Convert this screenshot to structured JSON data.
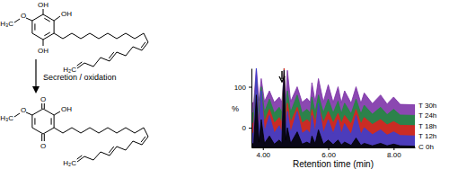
{
  "chart_data": {
    "type": "area",
    "x_label": "Retention time (min)",
    "y_label": "%",
    "xlim": [
      3.65,
      8.65
    ],
    "ylim": [
      -48,
      145
    ],
    "xticks": [
      {
        "value": 4,
        "label": "4.00"
      },
      {
        "value": 6,
        "label": "6.00"
      },
      {
        "value": 8,
        "label": "8.00"
      }
    ],
    "yticks": [
      0,
      100
    ],
    "grid": false,
    "x": [
      3.65,
      3.72,
      3.8,
      3.88,
      3.95,
      4.05,
      4.2,
      4.35,
      4.5,
      4.58,
      4.65,
      4.7,
      4.75,
      4.85,
      5.05,
      5.2,
      5.35,
      5.45,
      5.5,
      5.6,
      5.7,
      5.85,
      6.0,
      6.15,
      6.3,
      6.4,
      6.5,
      6.7,
      6.85,
      7.0,
      7.1,
      7.35,
      7.6,
      7.8,
      8.0,
      8.2,
      8.65
    ],
    "series": [
      {
        "name": "T 30h",
        "color": "#7b2fa6",
        "values": [
          60,
          62,
          145,
          66,
          120,
          64,
          90,
          62,
          75,
          63,
          130,
          68,
          140,
          64,
          100,
          62,
          72,
          62,
          110,
          64,
          120,
          63,
          105,
          62,
          100,
          61,
          90,
          60,
          100,
          60,
          85,
          59,
          80,
          58,
          75,
          57,
          56
        ]
      },
      {
        "name": "T 24h",
        "color": "#1f8a3c",
        "values": [
          35,
          37,
          120,
          40,
          100,
          38,
          70,
          36,
          50,
          37,
          145,
          45,
          90,
          38,
          80,
          36,
          45,
          36,
          75,
          38,
          80,
          37,
          70,
          36,
          65,
          35,
          60,
          34,
          70,
          34,
          55,
          33,
          50,
          32,
          45,
          31,
          30
        ]
      },
      {
        "name": "T 18h",
        "color": "#e0201f",
        "values": [
          10,
          12,
          110,
          15,
          80,
          13,
          45,
          11,
          25,
          12,
          145,
          20,
          60,
          13,
          50,
          11,
          20,
          11,
          45,
          13,
          55,
          12,
          40,
          11,
          35,
          10,
          30,
          9,
          45,
          9,
          25,
          8,
          20,
          7,
          15,
          6,
          5
        ]
      },
      {
        "name": "T 12h",
        "color": "#3a3fd0",
        "values": [
          -15,
          -12,
          145,
          -8,
          90,
          -10,
          30,
          -13,
          5,
          -12,
          140,
          -5,
          40,
          -12,
          40,
          -14,
          -5,
          -14,
          30,
          -12,
          60,
          -13,
          20,
          -14,
          20,
          -15,
          10,
          -16,
          30,
          -16,
          0,
          -17,
          -5,
          -18,
          -10,
          -19,
          -20
        ]
      },
      {
        "name": "C 0h",
        "color": "#000000",
        "values": [
          -40,
          -38,
          80,
          -35,
          20,
          -38,
          -20,
          -40,
          -30,
          -38,
          140,
          -30,
          0,
          -38,
          -10,
          -40,
          -35,
          -40,
          -20,
          -39,
          -5,
          -40,
          -30,
          -41,
          -30,
          -42,
          -35,
          -43,
          -25,
          -43,
          -38,
          -44,
          -38,
          -44,
          -40,
          -44,
          -45
        ]
      }
    ]
  },
  "scheme": {
    "reaction_label": "Secretion / oxidation",
    "reactant": {
      "labels": [
        "OH",
        "OH",
        "OH",
        "O",
        "H₃C",
        "H₂C"
      ]
    },
    "product": {
      "labels": [
        "O",
        "OH",
        "O",
        "O",
        "H₃C",
        "H₂C"
      ]
    }
  }
}
